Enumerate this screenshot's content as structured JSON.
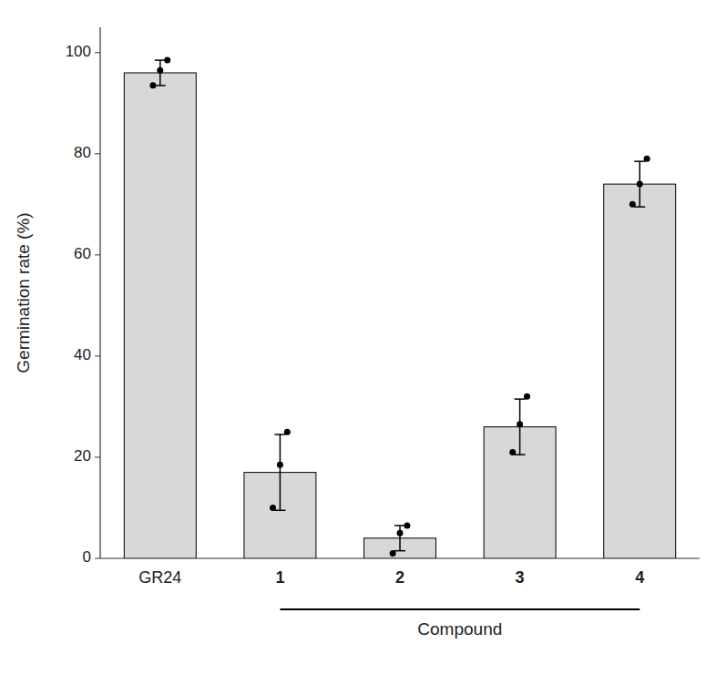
{
  "chart_data": {
    "type": "bar",
    "categories": [
      "GR24",
      "1",
      "2",
      "3",
      "4"
    ],
    "values": [
      96.0,
      17.0,
      4.0,
      26.0,
      74.0
    ],
    "errors": [
      2.5,
      7.5,
      2.5,
      5.5,
      4.5
    ],
    "points": [
      [
        93.5,
        96.5,
        98.5
      ],
      [
        10.0,
        18.5,
        25.0
      ],
      [
        1.0,
        5.0,
        6.5
      ],
      [
        21.0,
        26.5,
        32.0
      ],
      [
        70.0,
        74.0,
        79.0
      ]
    ],
    "color": "#d8d8d8",
    "ylabel": "Germination rate (%)",
    "annotations": [
      {
        "text": "Compound",
        "categories": [
          "1",
          "2",
          "3",
          "4"
        ]
      }
    ],
    "ylim": [
      0,
      105
    ],
    "yticks": [
      0,
      20,
      40,
      60,
      80,
      100
    ],
    "grid": false
  }
}
